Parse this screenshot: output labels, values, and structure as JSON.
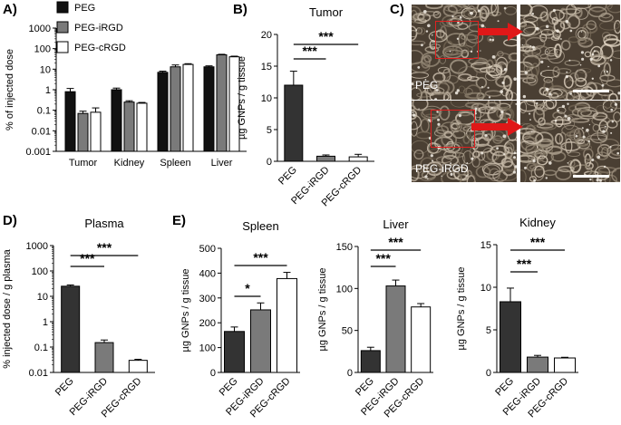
{
  "colors": {
    "peg": "#111111",
    "peg_irgd": "#7a7a7a",
    "peg_crgd": "#ffffff",
    "dark_bar": "#333333",
    "arrow": "#e01818",
    "micro_bg": "#4a3f33"
  },
  "panel_labels": {
    "a": "A)",
    "b": "B)",
    "c": "C)",
    "d": "D)",
    "e": "E)"
  },
  "micrograph": {
    "top_label": "PEG",
    "bottom_label": "PEG-iRGD"
  },
  "chart_data": [
    {
      "id": "A",
      "type": "bar",
      "scale": "log",
      "title": "",
      "ylabel": "% of injected dose",
      "ylim": [
        0.001,
        1000
      ],
      "yticks": [
        "0.001",
        "0.01",
        "0.1",
        "1",
        "10",
        "100",
        "1000"
      ],
      "categories": [
        "Tumor",
        "Kidney",
        "Spleen",
        "Liver"
      ],
      "legend": [
        "PEG",
        "PEG-iRGD",
        "PEG-cRGD"
      ],
      "legend_position": "top-left",
      "series": [
        {
          "name": "PEG",
          "color": "#111111",
          "values": [
            0.8,
            1.0,
            7.0,
            13.0
          ],
          "errors": [
            0.35,
            0.2,
            1.0,
            1.5
          ]
        },
        {
          "name": "PEG-iRGD",
          "color": "#7a7a7a",
          "values": [
            0.07,
            0.25,
            13.0,
            50.0
          ],
          "errors": [
            0.02,
            0.04,
            3.0,
            3.0
          ]
        },
        {
          "name": "PEG-cRGD",
          "color": "#ffffff",
          "values": [
            0.08,
            0.22,
            17.0,
            40.0
          ],
          "errors": [
            0.05,
            0.02,
            1.5,
            3.0
          ]
        }
      ]
    },
    {
      "id": "B",
      "type": "bar",
      "title": "Tumor",
      "ylabel": "µg GNPs / g tissue",
      "ylim": [
        0,
        20
      ],
      "yticks": [
        "0",
        "5",
        "10",
        "15",
        "20"
      ],
      "categories": [
        "PEG",
        "PEG-iRGD",
        "PEG-cRGD"
      ],
      "values": [
        12.0,
        0.8,
        0.7
      ],
      "errors": [
        2.2,
        0.2,
        0.4
      ],
      "colors": [
        "#333333",
        "#7a7a7a",
        "#ffffff"
      ],
      "significance": [
        {
          "from": 0,
          "to": 1,
          "label": "***"
        },
        {
          "from": 0,
          "to": 2,
          "label": "***"
        }
      ]
    },
    {
      "id": "D",
      "type": "bar",
      "scale": "log",
      "title": "Plasma",
      "ylabel": "% injected dose / g plasma",
      "ylim": [
        0.01,
        1000
      ],
      "yticks": [
        "0.01",
        "0.1",
        "1",
        "10",
        "100",
        "1000"
      ],
      "categories": [
        "PEG",
        "PEG-iRGD",
        "PEG-cRGD"
      ],
      "values": [
        25.0,
        0.15,
        0.03
      ],
      "errors": [
        3.0,
        0.04,
        0.003
      ],
      "colors": [
        "#333333",
        "#7a7a7a",
        "#ffffff"
      ],
      "significance": [
        {
          "from": 0,
          "to": 1,
          "label": "***"
        },
        {
          "from": 0,
          "to": 2,
          "label": "***"
        }
      ]
    },
    {
      "id": "E1",
      "type": "bar",
      "title": "Spleen",
      "ylabel": "µg GNPs / g tissue",
      "ylim": [
        0,
        500
      ],
      "yticks": [
        "0",
        "100",
        "200",
        "300",
        "400",
        "500"
      ],
      "categories": [
        "PEG",
        "PEG-iRGD",
        "PEG-cRGD"
      ],
      "values": [
        165,
        252,
        378
      ],
      "errors": [
        18,
        28,
        25
      ],
      "colors": [
        "#333333",
        "#7a7a7a",
        "#ffffff"
      ],
      "significance": [
        {
          "from": 0,
          "to": 1,
          "label": "*"
        },
        {
          "from": 0,
          "to": 2,
          "label": "***"
        }
      ]
    },
    {
      "id": "E2",
      "type": "bar",
      "title": "Liver",
      "ylabel": "µg GNPs / g tissue",
      "ylim": [
        0,
        150
      ],
      "yticks": [
        "0",
        "50",
        "100",
        "150"
      ],
      "categories": [
        "PEG",
        "PEG-iRGD",
        "PEG-cRGD"
      ],
      "values": [
        26,
        103,
        78
      ],
      "errors": [
        4,
        7,
        4
      ],
      "colors": [
        "#333333",
        "#7a7a7a",
        "#ffffff"
      ],
      "significance": [
        {
          "from": 0,
          "to": 1,
          "label": "***"
        },
        {
          "from": 0,
          "to": 2,
          "label": "***"
        }
      ]
    },
    {
      "id": "E3",
      "type": "bar",
      "title": "Kidney",
      "ylabel": "µg GNPs / g tissue",
      "ylim": [
        0,
        15
      ],
      "yticks": [
        "0",
        "5",
        "10",
        "15"
      ],
      "categories": [
        "PEG",
        "PEG-iRGD",
        "PEG-cRGD"
      ],
      "values": [
        8.3,
        1.8,
        1.7
      ],
      "errors": [
        1.6,
        0.2,
        0.08
      ],
      "colors": [
        "#333333",
        "#7a7a7a",
        "#ffffff"
      ],
      "significance": [
        {
          "from": 0,
          "to": 1,
          "label": "***"
        },
        {
          "from": 0,
          "to": 2,
          "label": "***"
        }
      ]
    }
  ]
}
